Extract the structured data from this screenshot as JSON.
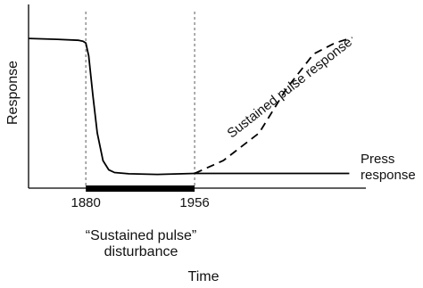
{
  "chart_data": {
    "type": "line",
    "x_label": "Time",
    "y_label": "Response",
    "xlim": [
      1840,
      2070
    ],
    "ylim": [
      0,
      100
    ],
    "xticks": [
      1880,
      1956
    ],
    "color": "#000000",
    "disturbance": {
      "label": "“Sustained pulse” disturbance",
      "start": 1880,
      "end": 1956
    },
    "series": [
      {
        "name": "Press response",
        "color": "#000000",
        "dashed": false,
        "x": [
          1840,
          1860,
          1875,
          1878,
          1880,
          1882,
          1885,
          1888,
          1892,
          1896,
          1900,
          1910,
          1930,
          1956,
          2064
        ],
        "values": [
          81.5,
          81,
          80.5,
          80,
          79,
          72,
          50,
          30,
          15,
          10,
          8.5,
          7.8,
          7.5,
          8,
          8
        ]
      },
      {
        "name": "Sustained pulse response",
        "color": "#000000",
        "dashed": true,
        "x": [
          1956,
          1976,
          2001,
          2020,
          2039,
          2054,
          2066
        ],
        "values": [
          8,
          15,
          30,
          54,
          73,
          79,
          82
        ]
      }
    ]
  }
}
